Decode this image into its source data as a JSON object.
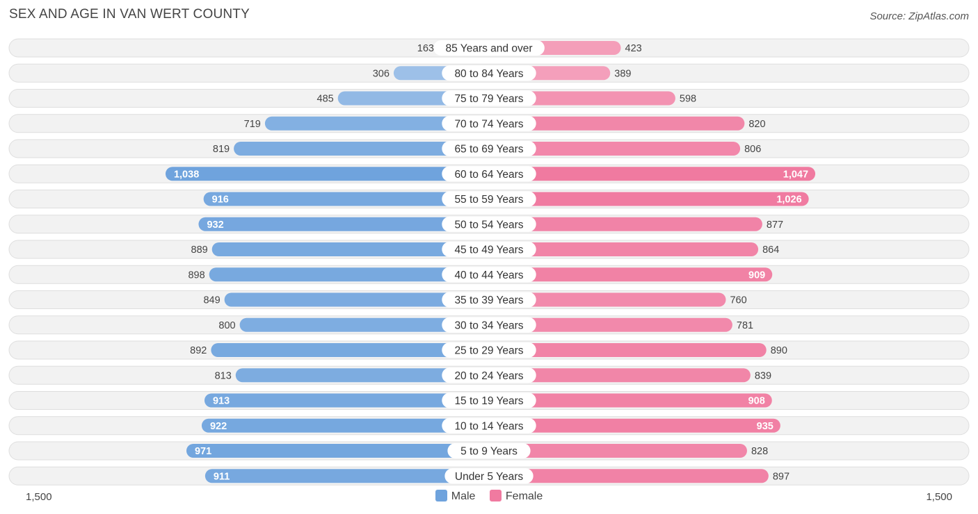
{
  "chart_data": {
    "type": "bar",
    "orientation": "horizontal-diverging",
    "title": "SEX AND AGE IN VAN WERT COUNTY",
    "source": "Source: ZipAtlas.com",
    "categories": [
      "85 Years and over",
      "80 to 84 Years",
      "75 to 79 Years",
      "70 to 74 Years",
      "65 to 69 Years",
      "60 to 64 Years",
      "55 to 59 Years",
      "50 to 54 Years",
      "45 to 49 Years",
      "40 to 44 Years",
      "35 to 39 Years",
      "30 to 34 Years",
      "25 to 29 Years",
      "20 to 24 Years",
      "15 to 19 Years",
      "10 to 14 Years",
      "5 to 9 Years",
      "Under 5 Years"
    ],
    "series": [
      {
        "name": "Male",
        "color": "#6fa3dd",
        "values": [
          163,
          306,
          485,
          719,
          819,
          1038,
          916,
          932,
          889,
          898,
          849,
          800,
          892,
          813,
          913,
          922,
          971,
          911
        ]
      },
      {
        "name": "Female",
        "color": "#f07aa0",
        "values": [
          423,
          389,
          598,
          820,
          806,
          1047,
          1026,
          877,
          864,
          909,
          760,
          781,
          890,
          839,
          908,
          935,
          828,
          897
        ]
      }
    ],
    "axis": {
      "left_label": "1,500",
      "right_label": "1,500",
      "max": 1500
    },
    "legend_position": "bottom-center"
  }
}
